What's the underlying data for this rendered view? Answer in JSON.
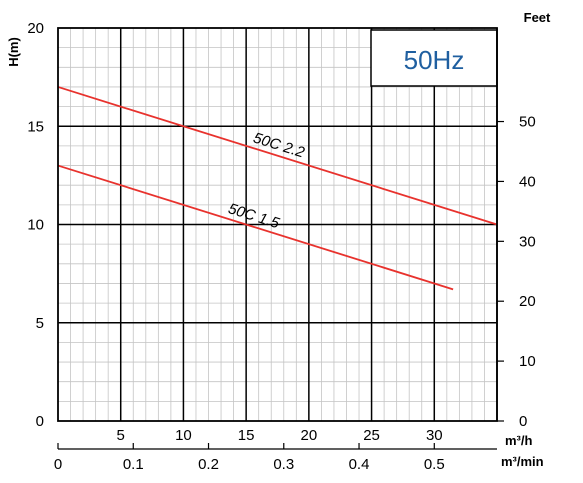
{
  "chart_data": {
    "type": "line",
    "ylabel": "H(m)",
    "y2label": "Feet",
    "xunit_top": "m³/h",
    "xunit_bottom": "m³/min",
    "frequency_label": "50Hz",
    "ylim": [
      0,
      20
    ],
    "xlim": [
      0,
      35
    ],
    "y_ticks": [
      0,
      5,
      10,
      15,
      20
    ],
    "y2_ticks": [
      0,
      10,
      20,
      30,
      40,
      50
    ],
    "x_ticks_top": [
      5,
      10,
      15,
      20,
      25,
      30
    ],
    "x_ticks_bottom": [
      "0",
      "0.1",
      "0.2",
      "0.3",
      "0.4",
      "0.5"
    ],
    "grid": true,
    "series": [
      {
        "name": "50C  2.2",
        "color": "#e8322d",
        "x": [
          0,
          35
        ],
        "y": [
          17,
          10
        ]
      },
      {
        "name": "50C  1.5",
        "color": "#e8322d",
        "x": [
          0,
          31.5
        ],
        "y": [
          13,
          6.7
        ]
      }
    ]
  }
}
